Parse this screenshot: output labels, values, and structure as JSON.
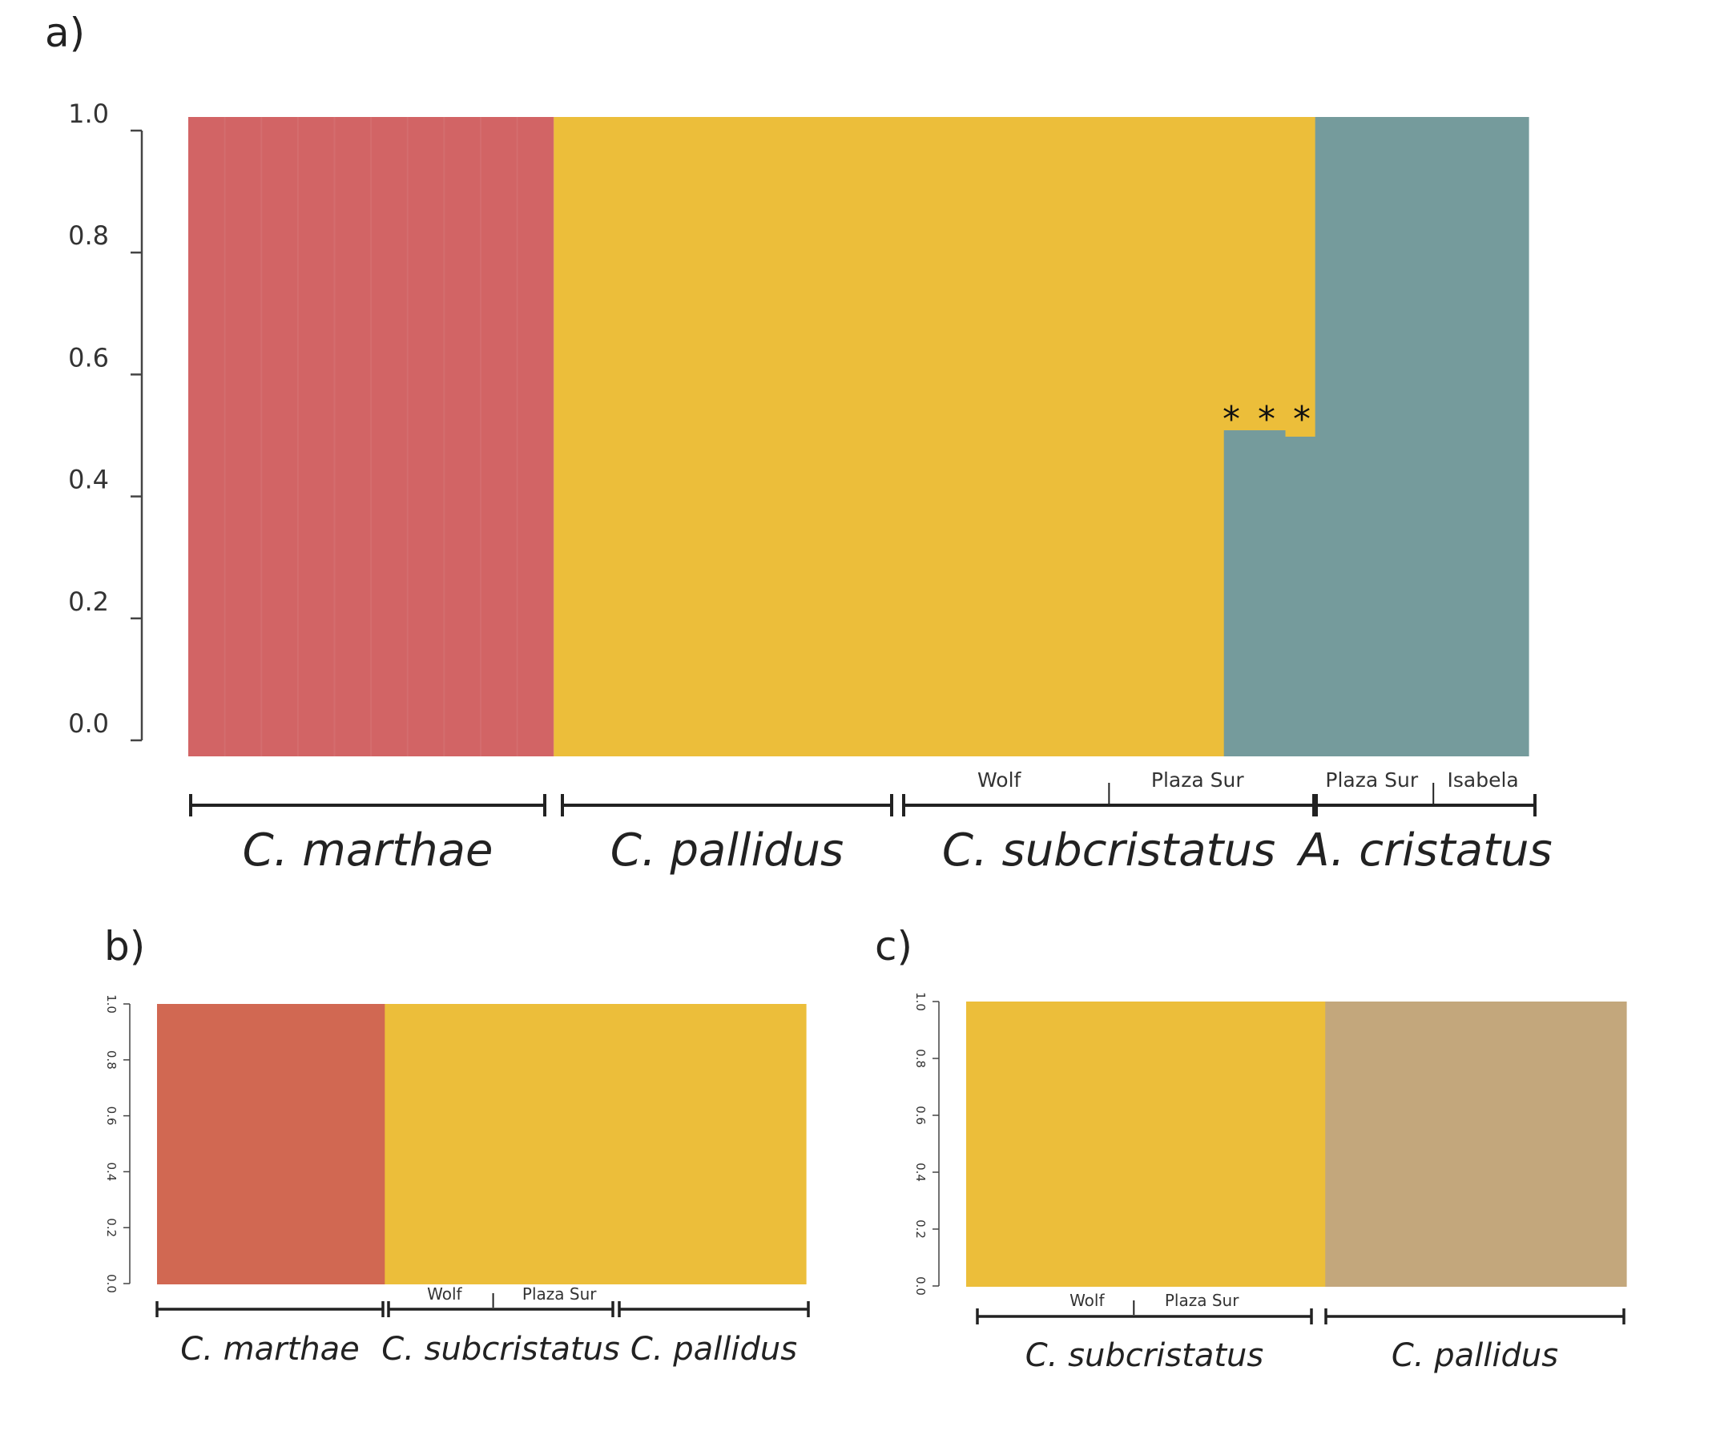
{
  "colors": {
    "marthae_a": "#D26465",
    "marthae_b": "#D16852",
    "yellow": "#ECBE3A",
    "cristatus": "#759B9C",
    "pallidus_c": "#C3A77C",
    "axis": "#444444",
    "bracket": "#222222",
    "background": "#FFFFFF"
  },
  "chart_data": [
    {
      "panel": "a)",
      "type": "bar",
      "stacked": true,
      "ylim": [
        0,
        1
      ],
      "y_ticks": [
        "0.0",
        "0.2",
        "0.4",
        "0.6",
        "0.8",
        "1.0"
      ],
      "segments": [
        {
          "x_start": 0.0,
          "x_end": 0.2727,
          "bottom_value": 1.0,
          "bottom_color": "marthae_a",
          "top_color": "yellow"
        },
        {
          "x_start": 0.2727,
          "x_end": 0.7727,
          "bottom_value": 0.0,
          "bottom_color": "cristatus",
          "top_color": "yellow"
        },
        {
          "x_start": 0.7727,
          "x_end": 0.8186,
          "bottom_value": 0.51,
          "bottom_color": "cristatus",
          "top_color": "yellow"
        },
        {
          "x_start": 0.8186,
          "x_end": 0.8408,
          "bottom_value": 0.5,
          "bottom_color": "cristatus",
          "top_color": "yellow"
        },
        {
          "x_start": 0.8408,
          "x_end": 0.8408,
          "bottom_value": 0.51,
          "bottom_color": "cristatus",
          "top_color": "yellow"
        },
        {
          "x_start": 0.8408,
          "x_end": 0.8408,
          "bottom_value": 1.0,
          "bottom_color": "cristatus",
          "top_color": "yellow"
        },
        {
          "x_start": 0.8408,
          "x_end": 1.0,
          "bottom_value": 1.0,
          "bottom_color": "cristatus",
          "top_color": "yellow"
        }
      ],
      "annotation": "* * *",
      "groups": [
        {
          "label": "C. marthae",
          "x_start": 0.0,
          "x_end": 0.2727
        },
        {
          "label": "C. pallidus",
          "x_start": 0.2727,
          "x_end": 0.5227
        },
        {
          "label": "C. subcristatus",
          "x_start": 0.5227,
          "x_end": 0.8408
        },
        {
          "label": "A. cristatus",
          "x_start": 0.8408,
          "x_end": 1.0
        }
      ],
      "sublabels": [
        {
          "label": "Wolf",
          "x": 0.605
        },
        {
          "label": "Plaza Sur",
          "x": 0.753
        },
        {
          "label": "Plaza Sur",
          "x": 0.883
        },
        {
          "label": "Isabela",
          "x": 0.966
        }
      ],
      "sub_dividers": [
        0.687,
        0.929
      ]
    },
    {
      "panel": "b)",
      "type": "bar",
      "stacked": true,
      "ylim": [
        0,
        1
      ],
      "y_ticks": [
        "0.0",
        "0.2",
        "0.4",
        "0.6",
        "0.8",
        "1.0"
      ],
      "segments": [
        {
          "x_start": 0.0,
          "x_end": 0.351,
          "bottom_value": 1.0,
          "bottom_color": "marthae_b",
          "top_color": "yellow"
        },
        {
          "x_start": 0.351,
          "x_end": 1.0,
          "bottom_value": 0.0,
          "bottom_color": "marthae_b",
          "top_color": "yellow"
        }
      ],
      "groups": [
        {
          "label": "C. marthae",
          "x_start": 0.0,
          "x_end": 0.351
        },
        {
          "label": "C. subcristatus",
          "x_start": 0.351,
          "x_end": 0.706
        },
        {
          "label": "C. pallidus",
          "x_start": 0.706,
          "x_end": 1.0
        }
      ],
      "sublabels": [
        {
          "label": "Wolf",
          "x": 0.443
        },
        {
          "label": "Plaza Sur",
          "x": 0.62
        }
      ],
      "sub_dividers": [
        0.518
      ]
    },
    {
      "panel": "c)",
      "type": "bar",
      "stacked": true,
      "ylim": [
        0,
        1
      ],
      "y_ticks": [
        "0.0",
        "0.2",
        "0.4",
        "0.6",
        "0.8",
        "1.0"
      ],
      "segments": [
        {
          "x_start": 0.0,
          "x_end": 0.544,
          "bottom_value": 1.0,
          "bottom_color": "yellow",
          "top_color": "pallidus_c"
        },
        {
          "x_start": 0.544,
          "x_end": 1.0,
          "bottom_value": 0.0,
          "bottom_color": "yellow",
          "top_color": "pallidus_c"
        }
      ],
      "groups": [
        {
          "label": "C. subcristatus",
          "x_start": 0.0,
          "x_end": 0.522
        },
        {
          "label": "C. pallidus",
          "x_start": 0.522,
          "x_end": 1.0
        }
      ],
      "sublabels": [
        {
          "label": "Wolf",
          "x": 0.183
        },
        {
          "label": "Plaza Sur",
          "x": 0.357
        }
      ],
      "sub_dividers": [
        0.254
      ]
    }
  ]
}
